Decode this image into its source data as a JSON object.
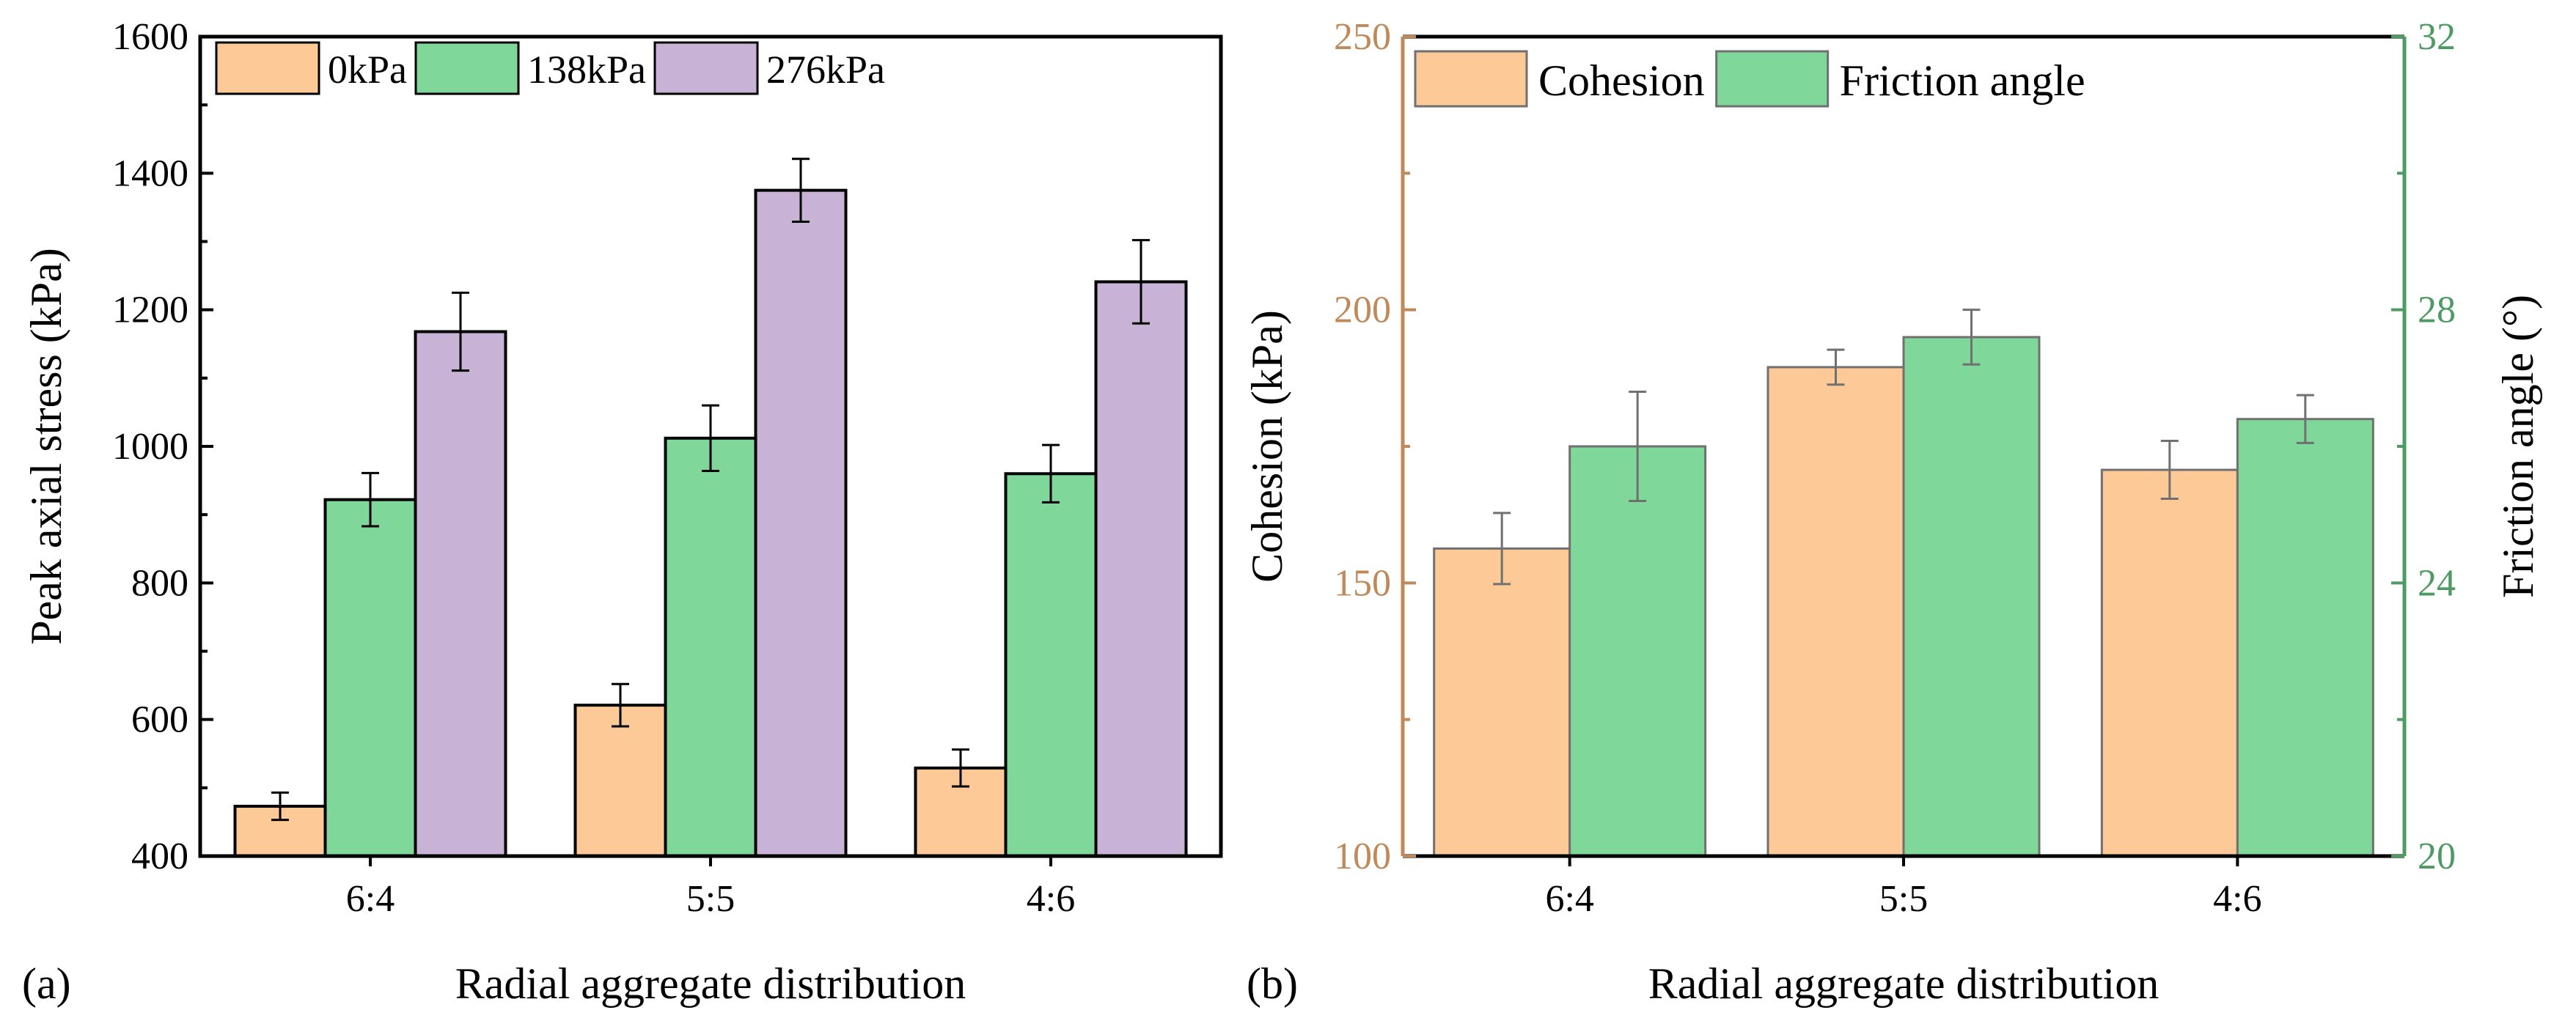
{
  "chart_data": [
    {
      "type": "bar",
      "panel_label": "(a)",
      "xlabel": "Radial aggregate distribution",
      "ylabel": "Peak axial stress (kPa)",
      "ylim": [
        400,
        1600
      ],
      "yticks": [
        400,
        600,
        800,
        1000,
        1200,
        1400,
        1600
      ],
      "categories": [
        "6:4",
        "5:5",
        "4:6"
      ],
      "legend_position": "top-left",
      "series": [
        {
          "name": "0kPa",
          "color": "#FDC997",
          "values": [
            473,
            621,
            529
          ],
          "errors": [
            20,
            31,
            27
          ]
        },
        {
          "name": "138kPa",
          "color": "#7FD79A",
          "values": [
            922,
            1012,
            960
          ],
          "errors": [
            39,
            48,
            42
          ]
        },
        {
          "name": "276kPa",
          "color": "#C8B3D6",
          "values": [
            1168,
            1375,
            1241
          ],
          "errors": [
            57,
            46,
            61
          ]
        }
      ]
    },
    {
      "type": "bar",
      "panel_label": "(b)",
      "xlabel": "Radial aggregate distribution",
      "ylabel": "Cohesion (kPa)",
      "ylabel_right": "Friction angle (°)",
      "ylim": [
        100,
        250
      ],
      "yticks": [
        100,
        150,
        200,
        250
      ],
      "ylim_right": [
        20,
        32
      ],
      "yticks_right": [
        20,
        24,
        28,
        32
      ],
      "left_axis_color": "#C0895A",
      "right_axis_color": "#4E9A63",
      "categories": [
        "6:4",
        "5:5",
        "4:6"
      ],
      "legend_position": "top-left",
      "series": [
        {
          "name": "Cohesion",
          "axis": "left",
          "color": "#FDC997",
          "values": [
            156.3,
            189.5,
            170.7
          ],
          "errors": [
            6.5,
            3.2,
            5.3
          ]
        },
        {
          "name": "Friction angle",
          "axis": "right",
          "color": "#7FD79A",
          "values": [
            26.0,
            27.6,
            26.4
          ],
          "errors": [
            0.8,
            0.4,
            0.35
          ]
        }
      ]
    }
  ]
}
